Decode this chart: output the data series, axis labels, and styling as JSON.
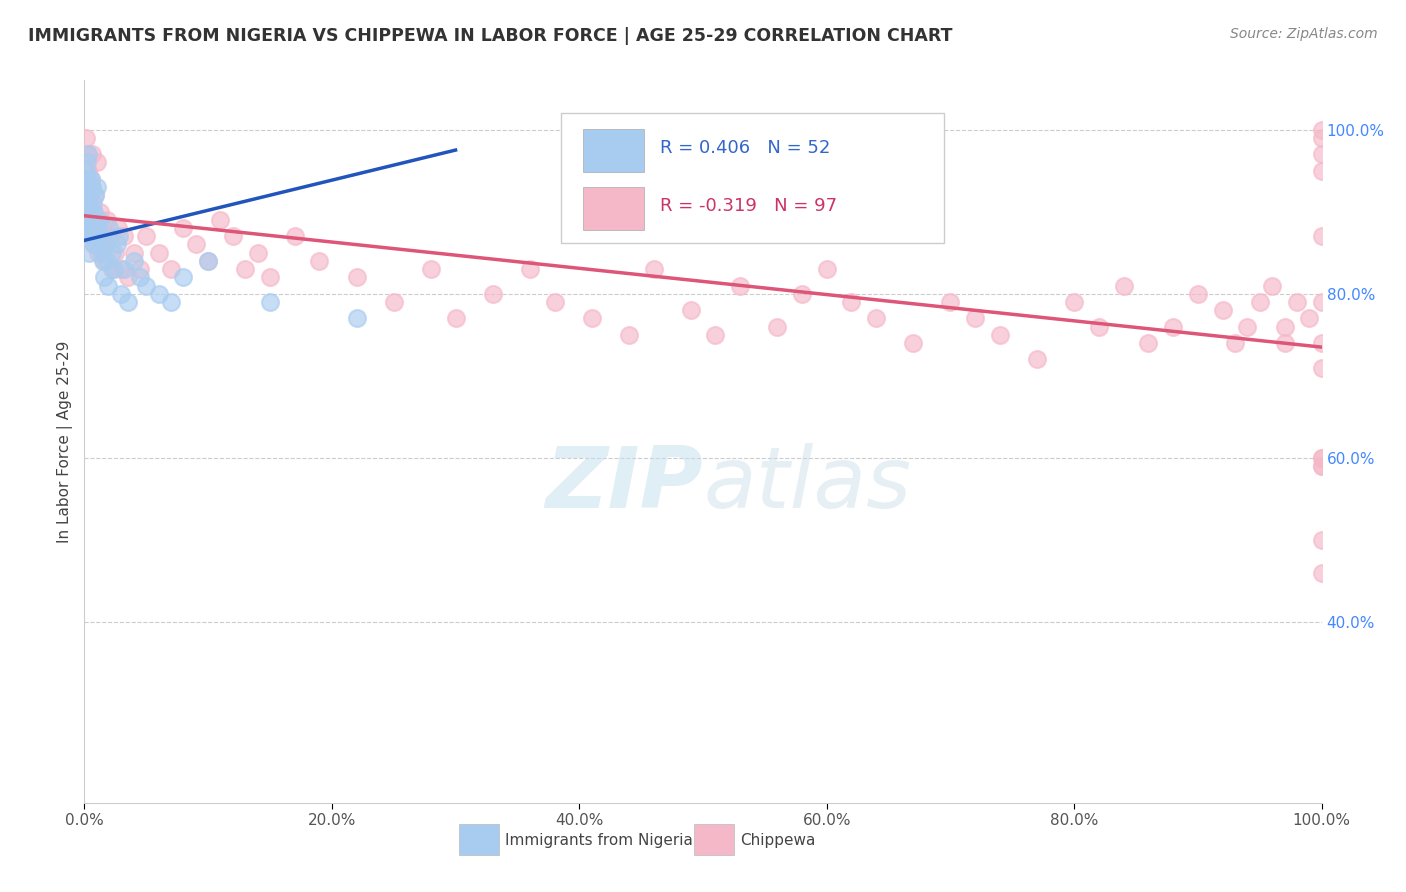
{
  "title": "IMMIGRANTS FROM NIGERIA VS CHIPPEWA IN LABOR FORCE | AGE 25-29 CORRELATION CHART",
  "source": "Source: ZipAtlas.com",
  "ylabel": "In Labor Force | Age 25-29",
  "xlim": [
    0,
    1.0
  ],
  "ylim": [
    0.18,
    1.06
  ],
  "blue_R": 0.406,
  "blue_N": 52,
  "pink_R": -0.319,
  "pink_N": 97,
  "blue_label": "Immigrants from Nigeria",
  "pink_label": "Chippewa",
  "background_color": "#ffffff",
  "blue_color": "#a8ccf0",
  "pink_color": "#f5b8c8",
  "blue_line_color": "#2255bb",
  "pink_line_color": "#dd5577",
  "ytick_color": "#4488ff",
  "blue_line_x0": 0.0,
  "blue_line_x1": 0.3,
  "blue_line_y0": 0.865,
  "blue_line_y1": 0.975,
  "pink_line_x0": 0.0,
  "pink_line_x1": 1.0,
  "pink_line_y0": 0.895,
  "pink_line_y1": 0.735,
  "blue_x": [
    0.001,
    0.001,
    0.001,
    0.001,
    0.002,
    0.002,
    0.002,
    0.003,
    0.003,
    0.003,
    0.004,
    0.004,
    0.004,
    0.005,
    0.005,
    0.005,
    0.006,
    0.006,
    0.007,
    0.007,
    0.008,
    0.008,
    0.009,
    0.009,
    0.01,
    0.01,
    0.011,
    0.012,
    0.013,
    0.014,
    0.015,
    0.016,
    0.017,
    0.018,
    0.019,
    0.02,
    0.022,
    0.024,
    0.026,
    0.028,
    0.03,
    0.032,
    0.035,
    0.04,
    0.045,
    0.05,
    0.06,
    0.07,
    0.08,
    0.1,
    0.15,
    0.22
  ],
  "blue_y": [
    0.95,
    0.93,
    0.91,
    0.88,
    0.96,
    0.93,
    0.89,
    0.97,
    0.94,
    0.9,
    0.92,
    0.88,
    0.85,
    0.94,
    0.9,
    0.87,
    0.93,
    0.89,
    0.91,
    0.87,
    0.9,
    0.86,
    0.92,
    0.88,
    0.93,
    0.88,
    0.86,
    0.89,
    0.87,
    0.85,
    0.84,
    0.82,
    0.86,
    0.84,
    0.81,
    0.88,
    0.85,
    0.83,
    0.86,
    0.87,
    0.8,
    0.83,
    0.79,
    0.84,
    0.82,
    0.81,
    0.8,
    0.79,
    0.82,
    0.84,
    0.79,
    0.77
  ],
  "pink_x": [
    0.001,
    0.001,
    0.002,
    0.002,
    0.003,
    0.004,
    0.004,
    0.005,
    0.006,
    0.006,
    0.007,
    0.007,
    0.008,
    0.009,
    0.01,
    0.01,
    0.011,
    0.012,
    0.013,
    0.015,
    0.016,
    0.017,
    0.018,
    0.02,
    0.022,
    0.025,
    0.027,
    0.03,
    0.032,
    0.035,
    0.04,
    0.045,
    0.05,
    0.06,
    0.07,
    0.08,
    0.09,
    0.1,
    0.11,
    0.12,
    0.13,
    0.14,
    0.15,
    0.17,
    0.19,
    0.22,
    0.25,
    0.28,
    0.3,
    0.33,
    0.36,
    0.38,
    0.41,
    0.44,
    0.46,
    0.49,
    0.51,
    0.53,
    0.56,
    0.58,
    0.6,
    0.62,
    0.64,
    0.67,
    0.7,
    0.72,
    0.74,
    0.77,
    0.8,
    0.82,
    0.84,
    0.86,
    0.88,
    0.9,
    0.92,
    0.93,
    0.94,
    0.95,
    0.96,
    0.97,
    0.97,
    0.98,
    0.99,
    1.0,
    1.0,
    1.0,
    1.0,
    1.0,
    1.0,
    1.0,
    1.0,
    1.0,
    1.0,
    1.0,
    1.0,
    1.0,
    1.0
  ],
  "pink_y": [
    0.99,
    0.94,
    0.97,
    0.92,
    0.95,
    0.91,
    0.88,
    0.94,
    0.97,
    0.93,
    0.9,
    0.86,
    0.88,
    0.92,
    0.96,
    0.89,
    0.85,
    0.87,
    0.9,
    0.88,
    0.84,
    0.86,
    0.89,
    0.87,
    0.83,
    0.85,
    0.88,
    0.83,
    0.87,
    0.82,
    0.85,
    0.83,
    0.87,
    0.85,
    0.83,
    0.88,
    0.86,
    0.84,
    0.89,
    0.87,
    0.83,
    0.85,
    0.82,
    0.87,
    0.84,
    0.82,
    0.79,
    0.83,
    0.77,
    0.8,
    0.83,
    0.79,
    0.77,
    0.75,
    0.83,
    0.78,
    0.75,
    0.81,
    0.76,
    0.8,
    0.83,
    0.79,
    0.77,
    0.74,
    0.79,
    0.77,
    0.75,
    0.72,
    0.79,
    0.76,
    0.81,
    0.74,
    0.76,
    0.8,
    0.78,
    0.74,
    0.76,
    0.79,
    0.81,
    0.76,
    0.74,
    0.79,
    0.77,
    1.0,
    0.99,
    0.97,
    0.95,
    0.87,
    0.79,
    0.74,
    0.71,
    0.5,
    0.46,
    0.6,
    0.59,
    0.6,
    0.59
  ]
}
